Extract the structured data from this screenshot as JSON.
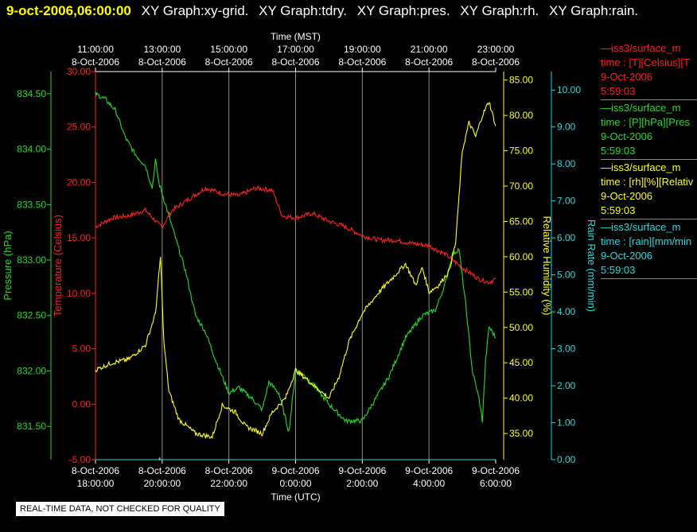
{
  "header": {
    "date_label": "9-oct-2006,06:00:00",
    "plot_labels": [
      "XY Graph:xy-grid.",
      "XY Graph:tdry.",
      "XY Graph:pres.",
      "XY Graph:rh.",
      "XY Graph:rain."
    ]
  },
  "legend": [
    {
      "color": "#ff2020",
      "lines": [
        "—iss3/surface_m",
        "time : [T][Celsius][T",
        "9-Oct-2006",
        "5:59:03"
      ]
    },
    {
      "color": "#22dd22",
      "lines": [
        "—iss3/surface_m",
        "time : [P][hPa][Pres",
        "9-Oct-2006",
        "5:59:03"
      ]
    },
    {
      "color": "#ffff22",
      "lines": [
        "—iss3/surface_m",
        "time : [rh][%][Relativ",
        "9-Oct-2006",
        "5:59:03"
      ]
    },
    {
      "color": "#22dddd",
      "lines": [
        "—iss3/surface_m",
        "time : [rain][mm/min",
        "9-Oct-2006",
        "5:59:03"
      ]
    }
  ],
  "footer_note": "REAL-TIME DATA, NOT CHECKED FOR QUALITY",
  "chart_data": {
    "type": "line",
    "x_unit": "hours UTC relative to 8-Oct-2006 18:00",
    "xlim": [
      0,
      12
    ],
    "top_axis": {
      "title": "Time (MST)",
      "ticks": [
        {
          "x": 0,
          "time": "11:00:00",
          "date": "8-Oct-2006"
        },
        {
          "x": 2,
          "time": "13:00:00",
          "date": "8-Oct-2006"
        },
        {
          "x": 4,
          "time": "15:00:00",
          "date": "8-Oct-2006"
        },
        {
          "x": 6,
          "time": "17:00:00",
          "date": "8-Oct-2006"
        },
        {
          "x": 8,
          "time": "19:00:00",
          "date": "8-Oct-2006"
        },
        {
          "x": 10,
          "time": "21:00:00",
          "date": "8-Oct-2006"
        },
        {
          "x": 12,
          "time": "23:00:00",
          "date": "8-Oct-2006"
        }
      ]
    },
    "bottom_axis": {
      "title": "Time (UTC)",
      "ticks": [
        {
          "x": 0,
          "date": "8-Oct-2006",
          "time": "18:00:00"
        },
        {
          "x": 2,
          "date": "8-Oct-2006",
          "time": "20:00:00"
        },
        {
          "x": 4,
          "date": "8-Oct-2006",
          "time": "22:00:00"
        },
        {
          "x": 6,
          "date": "9-Oct-2006",
          "time": "0:00:00"
        },
        {
          "x": 8,
          "date": "9-Oct-2006",
          "time": "2:00:00"
        },
        {
          "x": 10,
          "date": "9-Oct-2006",
          "time": "4:00:00"
        },
        {
          "x": 12,
          "date": "9-Oct-2006",
          "time": "6:00:00"
        }
      ]
    },
    "axes": {
      "pressure": {
        "label": "Pressure (hPa)",
        "color": "#22dd22",
        "ylim": [
          831.2,
          834.7
        ],
        "ticks": [
          "831.50",
          "832.00",
          "832.50",
          "833.00",
          "833.50",
          "834.00",
          "834.50"
        ]
      },
      "temperature": {
        "label": "Temperature (Celsius)",
        "color": "#ff2020",
        "ylim": [
          -5,
          30
        ],
        "ticks": [
          "-5.00",
          "0.00",
          "5.00",
          "10.00",
          "15.00",
          "20.00",
          "25.00",
          "30.00"
        ]
      },
      "rh": {
        "label": "Relative Humidity (%)",
        "color": "#ffff22",
        "ylim": [
          31.3,
          86.2
        ],
        "ticks": [
          "35.00",
          "40.00",
          "45.00",
          "50.00",
          "55.00",
          "60.00",
          "65.00",
          "70.00",
          "75.00",
          "80.00",
          "85.00"
        ]
      },
      "rain": {
        "label": "Rain Rate (mm/min)",
        "color": "#22dddd",
        "ylim": [
          0,
          10.5
        ],
        "ticks": [
          "0.00",
          "1.00",
          "2.00",
          "3.00",
          "4.00",
          "5.00",
          "6.00",
          "7.00",
          "8.00",
          "9.00",
          "10.00"
        ]
      }
    },
    "series": [
      {
        "key": "temperature",
        "axis": "temperature",
        "color": "#ff2020",
        "points": [
          [
            0,
            16.0
          ],
          [
            0.5,
            16.8
          ],
          [
            1,
            17.0
          ],
          [
            1.5,
            17.5
          ],
          [
            1.9,
            16.2
          ],
          [
            2,
            16.0
          ],
          [
            2.3,
            17.5
          ],
          [
            2.8,
            18.5
          ],
          [
            3.3,
            19.5
          ],
          [
            3.8,
            19.0
          ],
          [
            4.3,
            18.8
          ],
          [
            4.8,
            19.5
          ],
          [
            5.3,
            19.3
          ],
          [
            5.6,
            17.0
          ],
          [
            6.0,
            16.8
          ],
          [
            6.5,
            17.2
          ],
          [
            7.0,
            16.5
          ],
          [
            7.5,
            16.0
          ],
          [
            8.0,
            15.2
          ],
          [
            8.5,
            14.8
          ],
          [
            9.0,
            14.8
          ],
          [
            9.5,
            14.5
          ],
          [
            10.0,
            14.3
          ],
          [
            10.5,
            13.5
          ],
          [
            11.0,
            12.3
          ],
          [
            11.5,
            11.3
          ],
          [
            11.8,
            11.0
          ],
          [
            12.0,
            11.3
          ]
        ]
      },
      {
        "key": "pressure",
        "axis": "pressure",
        "color": "#22dd22",
        "points": [
          [
            0,
            834.5
          ],
          [
            0.3,
            834.45
          ],
          [
            0.6,
            834.35
          ],
          [
            0.9,
            834.1
          ],
          [
            1.2,
            833.95
          ],
          [
            1.5,
            833.85
          ],
          [
            1.7,
            833.65
          ],
          [
            1.8,
            833.9
          ],
          [
            1.9,
            833.7
          ],
          [
            2.1,
            833.5
          ],
          [
            2.4,
            833.2
          ],
          [
            2.7,
            832.9
          ],
          [
            3.0,
            832.5
          ],
          [
            3.3,
            832.35
          ],
          [
            3.6,
            832.1
          ],
          [
            4.0,
            831.8
          ],
          [
            4.3,
            831.85
          ],
          [
            4.7,
            831.75
          ],
          [
            5.0,
            831.65
          ],
          [
            5.2,
            831.9
          ],
          [
            5.5,
            831.8
          ],
          [
            5.8,
            831.45
          ],
          [
            6.0,
            832.0
          ],
          [
            6.3,
            831.95
          ],
          [
            6.6,
            831.85
          ],
          [
            7.0,
            831.7
          ],
          [
            7.5,
            831.55
          ],
          [
            8.0,
            831.55
          ],
          [
            8.4,
            831.75
          ],
          [
            8.8,
            831.95
          ],
          [
            9.3,
            832.3
          ],
          [
            9.8,
            832.5
          ],
          [
            10.2,
            832.55
          ],
          [
            10.5,
            832.8
          ],
          [
            10.7,
            833.05
          ],
          [
            10.9,
            833.1
          ],
          [
            11.1,
            832.6
          ],
          [
            11.3,
            832.0
          ],
          [
            11.5,
            831.75
          ],
          [
            11.6,
            831.55
          ],
          [
            11.7,
            832.1
          ],
          [
            11.8,
            832.4
          ],
          [
            12.0,
            832.3
          ]
        ]
      },
      {
        "key": "rh",
        "axis": "rh",
        "color": "#ffff22",
        "points": [
          [
            0,
            44
          ],
          [
            0.5,
            45
          ],
          [
            1,
            45.5
          ],
          [
            1.5,
            47.5
          ],
          [
            1.8,
            52
          ],
          [
            1.95,
            60
          ],
          [
            2.05,
            48
          ],
          [
            2.2,
            41
          ],
          [
            2.5,
            37
          ],
          [
            3.0,
            35
          ],
          [
            3.5,
            34.5
          ],
          [
            3.8,
            39
          ],
          [
            4.2,
            38
          ],
          [
            4.5,
            36
          ],
          [
            5.0,
            35
          ],
          [
            5.3,
            38
          ],
          [
            5.7,
            40
          ],
          [
            6.0,
            44
          ],
          [
            6.5,
            42
          ],
          [
            7.0,
            40
          ],
          [
            7.3,
            43
          ],
          [
            7.6,
            48
          ],
          [
            8.0,
            52
          ],
          [
            8.5,
            55
          ],
          [
            9.0,
            57.5
          ],
          [
            9.3,
            59
          ],
          [
            9.6,
            56
          ],
          [
            9.8,
            58.5
          ],
          [
            10.0,
            55
          ],
          [
            10.3,
            56
          ],
          [
            10.6,
            58
          ],
          [
            10.8,
            62
          ],
          [
            11.0,
            75
          ],
          [
            11.2,
            79
          ],
          [
            11.4,
            77
          ],
          [
            11.6,
            80
          ],
          [
            11.8,
            82
          ],
          [
            12.0,
            78.5
          ]
        ]
      },
      {
        "key": "rain",
        "axis": "rain",
        "color": "#22dddd",
        "points": [
          [
            0,
            0
          ],
          [
            1.9,
            0
          ],
          [
            1.92,
            0.05
          ],
          [
            1.95,
            0
          ],
          [
            12,
            0
          ]
        ]
      }
    ]
  }
}
